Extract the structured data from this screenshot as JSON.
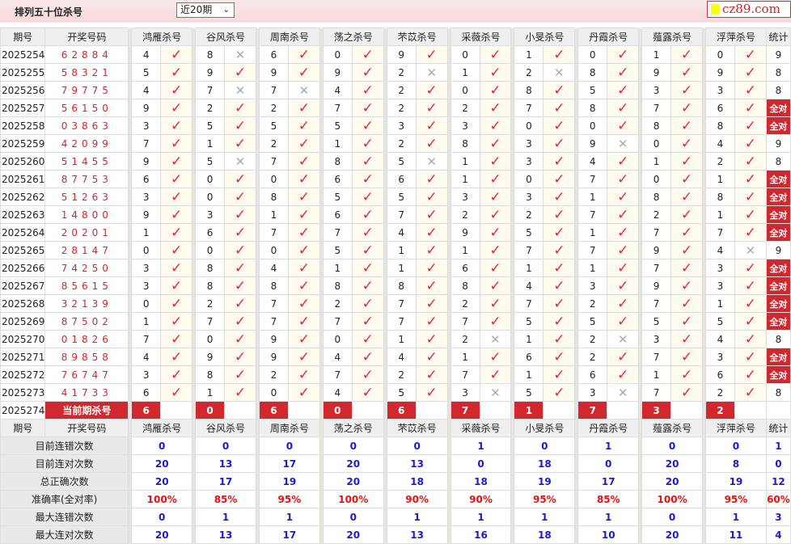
{
  "header": {
    "title": "排列五十位杀号",
    "select_value": "近20期",
    "logo_text": "cz89.com"
  },
  "columns": {
    "issue": "期号",
    "draw": "开奖号码",
    "stat": "统计",
    "experts": [
      "鸿雁杀号",
      "谷风杀号",
      "周南杀号",
      "荡之杀号",
      "芣苡杀号",
      "采薇杀号",
      "小旻杀号",
      "丹霞杀号",
      "薤露杀号",
      "浮萍杀号"
    ]
  },
  "colors": {
    "check": "#e0263c",
    "cross": "#aaaaaa",
    "badge": "#d0282e",
    "stat_value": "#1a1ad0",
    "rate": "#e81010"
  },
  "rows": [
    {
      "issue": "2025254",
      "draw": "62884",
      "picks": [
        "4",
        "8",
        "6",
        "0",
        "9",
        "0",
        "1",
        "0",
        "1",
        "0"
      ],
      "hits": "1011111111",
      "stat": "9"
    },
    {
      "issue": "2025255",
      "draw": "58321",
      "picks": [
        "5",
        "9",
        "9",
        "9",
        "2",
        "1",
        "2",
        "8",
        "9",
        "9"
      ],
      "hits": "1111010111",
      "stat": "8"
    },
    {
      "issue": "2025256",
      "draw": "79775",
      "picks": [
        "4",
        "7",
        "7",
        "4",
        "2",
        "0",
        "8",
        "5",
        "3",
        "3"
      ],
      "hits": "1001111111",
      "stat": "8"
    },
    {
      "issue": "2025257",
      "draw": "56150",
      "picks": [
        "9",
        "2",
        "2",
        "7",
        "2",
        "2",
        "7",
        "8",
        "7",
        "6"
      ],
      "hits": "1111111111",
      "stat": "全对"
    },
    {
      "issue": "2025258",
      "draw": "03863",
      "picks": [
        "3",
        "5",
        "5",
        "5",
        "3",
        "3",
        "0",
        "0",
        "8",
        "8"
      ],
      "hits": "1111111111",
      "stat": "全对"
    },
    {
      "issue": "2025259",
      "draw": "42099",
      "picks": [
        "7",
        "1",
        "2",
        "1",
        "2",
        "8",
        "3",
        "9",
        "0",
        "4"
      ],
      "hits": "1111111011",
      "stat": "9"
    },
    {
      "issue": "2025260",
      "draw": "51455",
      "picks": [
        "9",
        "5",
        "7",
        "8",
        "5",
        "1",
        "3",
        "4",
        "1",
        "2"
      ],
      "hits": "1011011111",
      "stat": "8"
    },
    {
      "issue": "2025261",
      "draw": "87753",
      "picks": [
        "6",
        "0",
        "0",
        "6",
        "6",
        "1",
        "0",
        "7",
        "0",
        "1"
      ],
      "hits": "1111111111",
      "stat": "全对"
    },
    {
      "issue": "2025262",
      "draw": "51263",
      "picks": [
        "3",
        "0",
        "8",
        "5",
        "5",
        "3",
        "3",
        "1",
        "8",
        "8"
      ],
      "hits": "1111111111",
      "stat": "全对"
    },
    {
      "issue": "2025263",
      "draw": "14800",
      "picks": [
        "9",
        "3",
        "1",
        "6",
        "7",
        "2",
        "2",
        "7",
        "2",
        "1"
      ],
      "hits": "1111111111",
      "stat": "全对"
    },
    {
      "issue": "2025264",
      "draw": "20201",
      "picks": [
        "1",
        "6",
        "7",
        "7",
        "4",
        "9",
        "5",
        "1",
        "7",
        "7"
      ],
      "hits": "1111111111",
      "stat": "全对"
    },
    {
      "issue": "2025265",
      "draw": "28147",
      "picks": [
        "0",
        "0",
        "0",
        "5",
        "1",
        "1",
        "7",
        "7",
        "9",
        "4"
      ],
      "hits": "1111111110",
      "stat": "9"
    },
    {
      "issue": "2025266",
      "draw": "74250",
      "picks": [
        "3",
        "8",
        "4",
        "1",
        "1",
        "6",
        "1",
        "1",
        "7",
        "3"
      ],
      "hits": "1111111111",
      "stat": "全对"
    },
    {
      "issue": "2025267",
      "draw": "85615",
      "picks": [
        "3",
        "8",
        "8",
        "8",
        "8",
        "8",
        "4",
        "3",
        "9",
        "3"
      ],
      "hits": "1111111111",
      "stat": "全对"
    },
    {
      "issue": "2025268",
      "draw": "32139",
      "picks": [
        "0",
        "2",
        "7",
        "2",
        "7",
        "2",
        "7",
        "2",
        "7",
        "1"
      ],
      "hits": "1111111111",
      "stat": "全对"
    },
    {
      "issue": "2025269",
      "draw": "87502",
      "picks": [
        "1",
        "7",
        "7",
        "7",
        "7",
        "7",
        "5",
        "5",
        "5",
        "5"
      ],
      "hits": "1111111111",
      "stat": "全对"
    },
    {
      "issue": "2025270",
      "draw": "01826",
      "picks": [
        "7",
        "0",
        "9",
        "0",
        "1",
        "2",
        "1",
        "2",
        "3",
        "4"
      ],
      "hits": "1111101011",
      "stat": "8"
    },
    {
      "issue": "2025271",
      "draw": "89858",
      "picks": [
        "4",
        "9",
        "9",
        "4",
        "4",
        "1",
        "6",
        "2",
        "7",
        "3"
      ],
      "hits": "1111111111",
      "stat": "全对"
    },
    {
      "issue": "2025272",
      "draw": "76747",
      "picks": [
        "3",
        "8",
        "2",
        "7",
        "2",
        "7",
        "1",
        "6",
        "1",
        "6"
      ],
      "hits": "1111111111",
      "stat": "全对"
    },
    {
      "issue": "2025273",
      "draw": "41733",
      "picks": [
        "6",
        "1",
        "0",
        "4",
        "5",
        "3",
        "5",
        "3",
        "7",
        "2"
      ],
      "hits": "1111101011",
      "stat": "8"
    }
  ],
  "current": {
    "issue": "2025274",
    "label": "当前期杀号",
    "picks": [
      "6",
      "0",
      "6",
      "0",
      "6",
      "7",
      "1",
      "7",
      "3",
      "2"
    ]
  },
  "stats": [
    {
      "label": "目前连错次数",
      "values": [
        "0",
        "0",
        "0",
        "0",
        "0",
        "1",
        "0",
        "1",
        "0",
        "0"
      ],
      "stat": "1"
    },
    {
      "label": "目前连对次数",
      "values": [
        "20",
        "13",
        "17",
        "20",
        "13",
        "0",
        "18",
        "0",
        "20",
        "8"
      ],
      "stat": "0"
    },
    {
      "label": "总正确次数",
      "values": [
        "20",
        "17",
        "19",
        "20",
        "18",
        "18",
        "19",
        "17",
        "20",
        "19"
      ],
      "stat": "12"
    },
    {
      "label": "准确率(全对率)",
      "values": [
        "100%",
        "85%",
        "95%",
        "100%",
        "90%",
        "90%",
        "95%",
        "85%",
        "100%",
        "95%"
      ],
      "stat": "60%"
    },
    {
      "label": "最大连错次数",
      "values": [
        "0",
        "1",
        "1",
        "0",
        "1",
        "1",
        "1",
        "1",
        "0",
        "1"
      ],
      "stat": "3"
    },
    {
      "label": "最大连对次数",
      "values": [
        "20",
        "13",
        "17",
        "20",
        "13",
        "16",
        "18",
        "10",
        "20",
        "11"
      ],
      "stat": "4"
    }
  ]
}
